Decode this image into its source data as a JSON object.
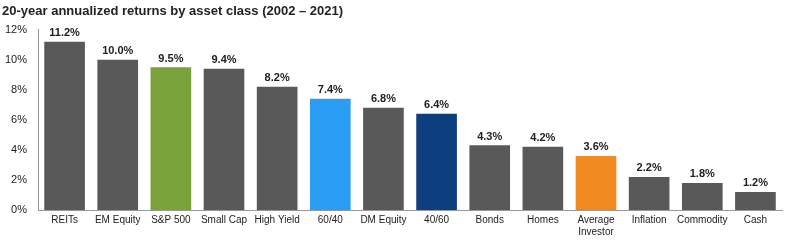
{
  "chart_data": {
    "type": "bar",
    "title": "20-year annualized returns by asset class (2002 – 2021)",
    "categories": [
      "REITs",
      "EM Equity",
      "S&P 500",
      "Small Cap",
      "High Yield",
      "60/40",
      "DM Equity",
      "40/60",
      "Bonds",
      "Homes",
      "Average Investor",
      "Inflation",
      "Commodity",
      "Cash"
    ],
    "values": [
      11.2,
      10.0,
      9.5,
      9.4,
      8.2,
      7.4,
      6.8,
      6.4,
      4.3,
      4.2,
      3.6,
      2.2,
      1.8,
      1.2
    ],
    "value_labels": [
      "11.2%",
      "10.0%",
      "9.5%",
      "9.4%",
      "8.2%",
      "7.4%",
      "6.8%",
      "6.4%",
      "4.3%",
      "4.2%",
      "3.6%",
      "2.2%",
      "1.8%",
      "1.2%"
    ],
    "colors": [
      "#595959",
      "#595959",
      "#7aa23a",
      "#595959",
      "#595959",
      "#2a9df4",
      "#595959",
      "#0d3f7f",
      "#595959",
      "#595959",
      "#f28a22",
      "#595959",
      "#595959",
      "#595959"
    ],
    "ylim": [
      0,
      12
    ],
    "yticks": [
      {
        "value": 0,
        "label": "0%"
      },
      {
        "value": 2,
        "label": "2%"
      },
      {
        "value": 4,
        "label": "4%"
      },
      {
        "value": 6,
        "label": "6%"
      },
      {
        "value": 8,
        "label": "8%"
      },
      {
        "value": 10,
        "label": "10%"
      },
      {
        "value": 12,
        "label": "12%"
      }
    ],
    "grid": false,
    "data_labels": true
  }
}
